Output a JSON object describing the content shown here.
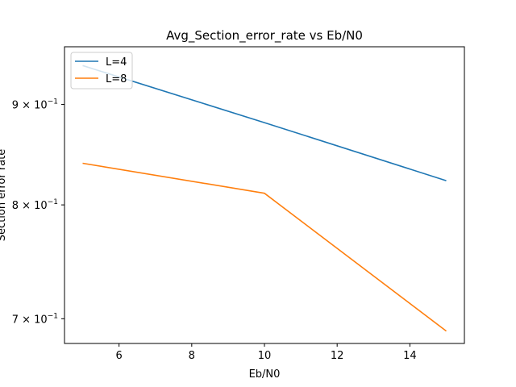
{
  "chart_data": {
    "type": "line",
    "title": "Avg_Section_error_rate vs Eb/N0",
    "xlabel": "Eb/N0",
    "ylabel": "Section error rate",
    "yscale": "log",
    "xlim": [
      4.5,
      15.5
    ],
    "ylim": [
      0.68,
      0.963
    ],
    "xticks": [
      6,
      8,
      10,
      12,
      14
    ],
    "xtick_labels": [
      "6",
      "8",
      "10",
      "12",
      "14"
    ],
    "yticks": [
      0.9,
      0.8,
      0.7
    ],
    "ytick_labels": [
      "9 × 10^-1",
      "8 × 10^-1",
      "7 × 10^-1"
    ],
    "legend_position": "top-left",
    "grid": false,
    "x": [
      5,
      10,
      15
    ],
    "series": [
      {
        "name": "L=4",
        "color": "#1f77b4",
        "values": [
          0.942,
          0.881,
          0.823
        ]
      },
      {
        "name": "L=8",
        "color": "#ff7f0e",
        "values": [
          0.84,
          0.811,
          0.69
        ]
      }
    ]
  }
}
